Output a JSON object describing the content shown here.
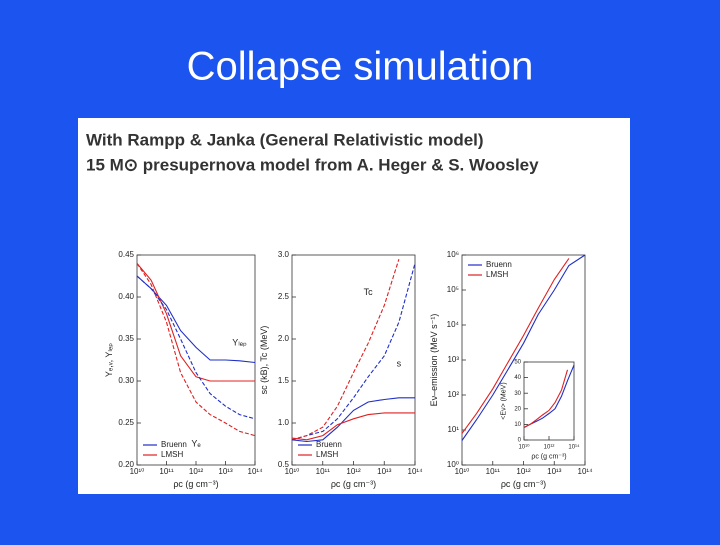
{
  "slide_title": "Collapse simulation",
  "figure": {
    "heading": [
      "With Rampp & Janka (General Relativistic model)",
      "15 M⊙ presupernova model from A. Heger & S. Woosley"
    ]
  },
  "chart_data": [
    {
      "type": "line",
      "xlog": true,
      "ylog": false,
      "x_label": "ρc (g cm⁻³)",
      "y_label": "Yₑ,ᵥ, Yₗₑₚ",
      "x": [
        10000000000.0,
        30000000000.0,
        100000000000.0,
        300000000000.0,
        1000000000000.0,
        3000000000000.0,
        10000000000000.0,
        30000000000000.0,
        100000000000000.0
      ],
      "xlim": [
        10000000000.0,
        100000000000000.0
      ],
      "xticks": [
        {
          "value": 10000000000.0,
          "label": "10¹⁰"
        },
        {
          "value": 100000000000.0,
          "label": "10¹¹"
        },
        {
          "value": 1000000000000.0,
          "label": "10¹²"
        },
        {
          "value": 10000000000000.0,
          "label": "10¹³"
        },
        {
          "value": 100000000000000.0,
          "label": "10¹⁴"
        }
      ],
      "ylim": [
        0.2,
        0.45
      ],
      "yticks": [
        {
          "value": 0.2,
          "label": "0.20"
        },
        0.25,
        {
          "value": 0.3,
          "label": "0.30"
        },
        0.35,
        {
          "value": 0.4,
          "label": "0.40"
        },
        0.45
      ],
      "legend_position": "lower left",
      "legend": [
        {
          "name": "Bruenn",
          "color": "#1f2fc8"
        },
        {
          "name": "LMSH",
          "color": "#e02020"
        }
      ],
      "series": [
        {
          "color": "#1f2fc8",
          "dashed": false,
          "values": [
            0.425,
            0.41,
            0.39,
            0.36,
            0.34,
            0.325,
            0.325,
            0.324,
            0.322
          ]
        },
        {
          "color": "#e02020",
          "dashed": false,
          "values": [
            0.44,
            0.42,
            0.38,
            0.33,
            0.305,
            0.3,
            0.3,
            0.3,
            0.3
          ]
        },
        {
          "color": "#1f2fc8",
          "dashed": true,
          "values": [
            0.425,
            0.41,
            0.385,
            0.35,
            0.31,
            0.285,
            0.27,
            0.26,
            0.255
          ]
        },
        {
          "color": "#e02020",
          "dashed": true,
          "values": [
            0.44,
            0.415,
            0.37,
            0.31,
            0.275,
            0.26,
            0.25,
            0.24,
            0.235
          ]
        }
      ],
      "annotations": [
        {
          "text": "Yₗₑₚ",
          "x": 30000000000000.0,
          "y": 0.345
        },
        {
          "text": "Yₑ",
          "x": 1000000000000.0,
          "y": 0.225
        }
      ]
    },
    {
      "type": "line",
      "xlog": true,
      "ylog": false,
      "x_label": "ρc (g cm⁻³)",
      "y_label": "sc (kB), Tc (MeV)",
      "x": [
        10000000000.0,
        30000000000.0,
        100000000000.0,
        300000000000.0,
        1000000000000.0,
        3000000000000.0,
        10000000000000.0,
        30000000000000.0,
        100000000000000.0
      ],
      "xlim": [
        10000000000.0,
        100000000000000.0
      ],
      "xticks": [
        {
          "value": 10000000000.0,
          "label": "10¹⁰"
        },
        {
          "value": 100000000000.0,
          "label": "10¹¹"
        },
        {
          "value": 1000000000000.0,
          "label": "10¹²"
        },
        {
          "value": 10000000000000.0,
          "label": "10¹³"
        },
        {
          "value": 100000000000000.0,
          "label": "10¹⁴"
        }
      ],
      "ylim": [
        0.5,
        3.0
      ],
      "yticks": [
        0.5,
        {
          "value": 1.0,
          "label": "1.0"
        },
        1.5,
        {
          "value": 2.0,
          "label": "2.0"
        },
        2.5,
        {
          "value": 3.0,
          "label": "3.0"
        }
      ],
      "legend_position": "lower left",
      "legend": [
        {
          "name": "Bruenn",
          "color": "#1f2fc8"
        },
        {
          "name": "LMSH",
          "color": "#e02020"
        }
      ],
      "series": [
        {
          "color": "#1f2fc8",
          "dashed": true,
          "values": [
            0.8,
            0.85,
            0.9,
            1.05,
            1.3,
            1.55,
            1.8,
            2.2,
            2.9
          ]
        },
        {
          "color": "#e02020",
          "dashed": true,
          "values": [
            0.8,
            0.85,
            0.95,
            1.2,
            1.6,
            1.95,
            2.4,
            2.95,
            null
          ]
        },
        {
          "color": "#1f2fc8",
          "dashed": false,
          "values": [
            0.8,
            0.78,
            0.8,
            0.95,
            1.15,
            1.25,
            1.28,
            1.3,
            1.3
          ]
        },
        {
          "color": "#e02020",
          "dashed": false,
          "values": [
            0.82,
            0.8,
            0.85,
            0.98,
            1.05,
            1.1,
            1.12,
            1.12,
            1.12
          ]
        }
      ],
      "annotations": [
        {
          "text": "Tc",
          "x": 3000000000000.0,
          "y": 2.55
        },
        {
          "text": "s",
          "x": 30000000000000.0,
          "y": 1.7
        }
      ]
    },
    {
      "type": "line",
      "xlog": true,
      "ylog": true,
      "x_label": "ρc (g cm⁻³)",
      "y_label": "Eν–emission (MeV s⁻¹)",
      "x": [
        10000000000.0,
        30000000000.0,
        100000000000.0,
        300000000000.0,
        1000000000000.0,
        3000000000000.0,
        10000000000000.0,
        30000000000000.0,
        100000000000000.0
      ],
      "xlim": [
        10000000000.0,
        100000000000000.0
      ],
      "xticks": [
        {
          "value": 10000000000.0,
          "label": "10¹⁰"
        },
        {
          "value": 100000000000.0,
          "label": "10¹¹"
        },
        {
          "value": 1000000000000.0,
          "label": "10¹²"
        },
        {
          "value": 10000000000000.0,
          "label": "10¹³"
        },
        {
          "value": 100000000000000.0,
          "label": "10¹⁴"
        }
      ],
      "ylim": [
        1,
        1000000.0
      ],
      "yticks": [
        {
          "value": 1,
          "label": "10⁰"
        },
        {
          "value": 10,
          "label": "10¹"
        },
        {
          "value": 100,
          "label": "10²"
        },
        {
          "value": 1000,
          "label": "10³"
        },
        {
          "value": 10000.0,
          "label": "10⁴"
        },
        {
          "value": 100000.0,
          "label": "10⁵"
        },
        {
          "value": 1000000.0,
          "label": "10⁶"
        }
      ],
      "legend_position": "upper left",
      "legend": [
        {
          "name": "Bruenn",
          "color": "#1f2fc8"
        },
        {
          "name": "LMSH",
          "color": "#e02020"
        }
      ],
      "series": [
        {
          "color": "#1f2fc8",
          "dashed": false,
          "values": [
            5,
            20,
            100,
            500,
            3000,
            20000,
            100000,
            500000,
            1000000
          ]
        },
        {
          "color": "#e02020",
          "dashed": false,
          "values": [
            8,
            30,
            150,
            800,
            5000,
            30000,
            200000,
            800000,
            null
          ]
        }
      ]
    },
    {
      "type": "line",
      "xlog": true,
      "ylog": false,
      "x_label": "ρc (g cm⁻³)",
      "y_label": "<Eν> (MeV)",
      "x": [
        10000000000.0,
        30000000000.0,
        100000000000.0,
        300000000000.0,
        1000000000000.0,
        3000000000000.0,
        10000000000000.0,
        30000000000000.0,
        100000000000000.0
      ],
      "xlim": [
        10000000000.0,
        100000000000000.0
      ],
      "xticks": [
        {
          "value": 10000000000.0,
          "label": "10¹⁰"
        },
        {
          "value": 1000000000000.0,
          "label": "10¹²"
        },
        {
          "value": 100000000000000.0,
          "label": "10¹⁴"
        }
      ],
      "ylim": [
        0,
        50
      ],
      "yticks": [
        0,
        10,
        20,
        30,
        40,
        50
      ],
      "series": [
        {
          "color": "#1f2fc8",
          "dashed": false,
          "values": [
            8,
            10,
            12,
            14,
            17,
            20,
            28,
            38,
            48
          ]
        },
        {
          "color": "#e02020",
          "dashed": false,
          "values": [
            8,
            10,
            13,
            16,
            19,
            24,
            32,
            45,
            null
          ]
        }
      ]
    }
  ]
}
